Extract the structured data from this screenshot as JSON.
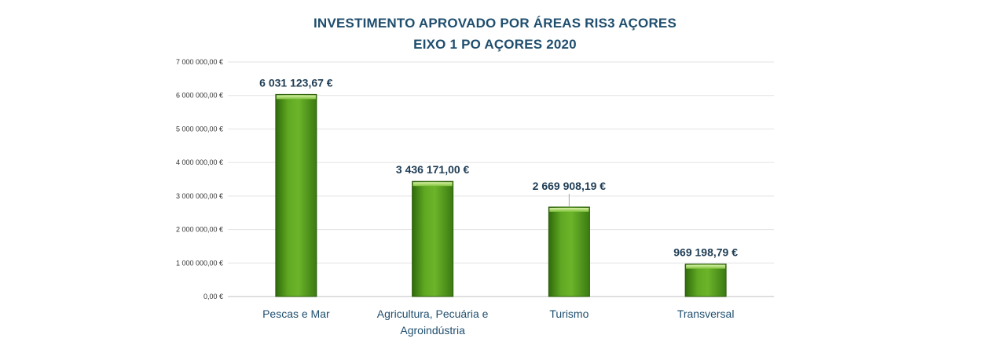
{
  "chart_data": {
    "type": "bar",
    "title": "INVESTIMENTO APROVADO POR ÁREAS RIS3 AÇORES",
    "subtitle": "EIXO 1 PO AÇORES 2020",
    "categories": [
      [
        "Pescas e Mar"
      ],
      [
        "Agricultura, Pecuária e",
        "Agroindústria"
      ],
      [
        "Turismo"
      ],
      [
        "Transversal"
      ]
    ],
    "values": [
      6031123.67,
      3436171.0,
      2669908.19,
      969198.79
    ],
    "data_labels": [
      "6 031 123,67 €",
      "3 436 171,00 €",
      "2 669 908,19 €",
      "969 198,79 €"
    ],
    "y_ticks": [
      {
        "value": 0,
        "label": "0,00 €"
      },
      {
        "value": 1000000,
        "label": "1 000 000,00 €"
      },
      {
        "value": 2000000,
        "label": "2 000 000,00 €"
      },
      {
        "value": 3000000,
        "label": "3 000 000,00 €"
      },
      {
        "value": 4000000,
        "label": "4 000 000,00 €"
      },
      {
        "value": 5000000,
        "label": "5 000 000,00 €"
      },
      {
        "value": 6000000,
        "label": "6 000 000,00 €"
      },
      {
        "value": 7000000,
        "label": "7 000 000,00 €"
      }
    ],
    "ylim": [
      0,
      7000000
    ],
    "grid": true,
    "legend": "none",
    "bar_color": "#5a9e1e"
  }
}
